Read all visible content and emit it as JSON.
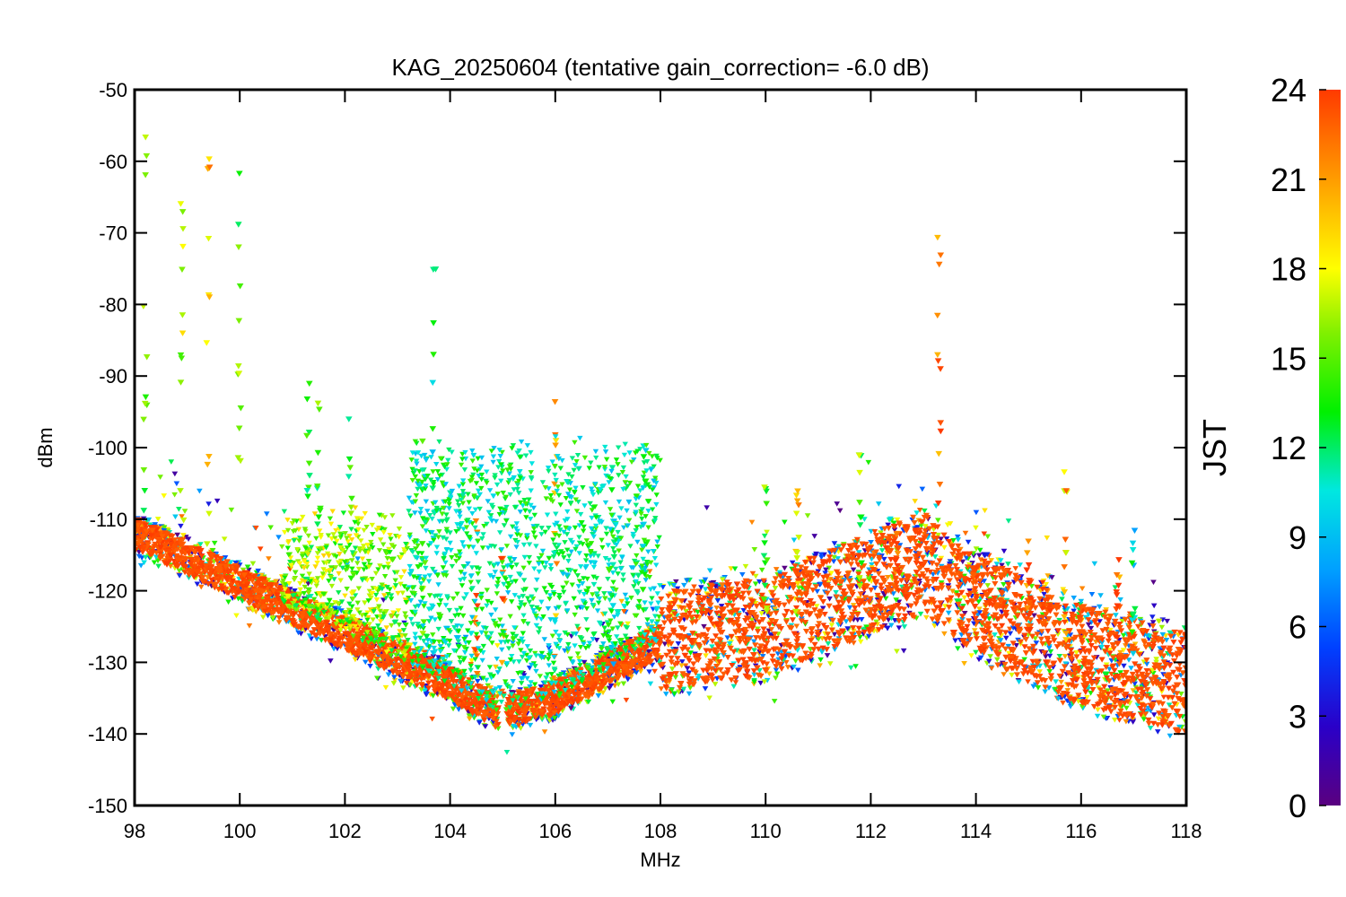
{
  "chart_data": {
    "type": "scatter",
    "title": "KAG_20250604 (tentative gain_correction= -6.0 dB)",
    "xlabel": "MHz",
    "ylabel": "dBm",
    "xlim": [
      98,
      118
    ],
    "ylim": [
      -150,
      -50
    ],
    "x_ticks": [
      98,
      100,
      102,
      104,
      106,
      108,
      110,
      112,
      114,
      116,
      118
    ],
    "y_ticks": [
      -50,
      -60,
      -70,
      -80,
      -90,
      -100,
      -110,
      -120,
      -130,
      -140,
      -150
    ],
    "grid": false,
    "marker": "downward triangle",
    "colorbar": {
      "label": "JST",
      "range": [
        0,
        24
      ],
      "ticks": [
        0,
        3,
        6,
        9,
        12,
        15,
        18,
        21,
        24
      ],
      "colormap": [
        "#5a0080",
        "#2a00c8",
        "#0040ff",
        "#00a0ff",
        "#00e8e0",
        "#00f000",
        "#80f000",
        "#ffff00",
        "#ffa000",
        "#ff3a00"
      ]
    },
    "noise_floor": {
      "x": [
        98,
        100,
        102,
        104,
        104.9,
        105.1,
        106,
        107,
        108,
        110,
        112,
        113,
        114,
        116,
        118
      ],
      "y": [
        -112,
        -119,
        -126,
        -133,
        -137,
        -137,
        -135,
        -131,
        -127,
        -125,
        -119,
        -116,
        -122,
        -129,
        -133
      ]
    },
    "signals": [
      {
        "freq": 98.2,
        "peak_dbm": -50,
        "jst": 15
      },
      {
        "freq": 98.9,
        "peak_dbm": -64,
        "jst": 17
      },
      {
        "freq": 99.4,
        "peak_dbm": -58,
        "jst": 20
      },
      {
        "freq": 100.0,
        "peak_dbm": -60,
        "jst": 15
      },
      {
        "freq": 101.3,
        "peak_dbm": -85,
        "jst": 13
      },
      {
        "freq": 101.5,
        "peak_dbm": -88,
        "jst": 14
      },
      {
        "freq": 102.1,
        "peak_dbm": -92,
        "jst": 14
      },
      {
        "freq": 103.5,
        "peak_dbm": -97,
        "jst": 15
      },
      {
        "freq": 103.7,
        "peak_dbm": -75,
        "jst": 11
      },
      {
        "freq": 104.5,
        "peak_dbm": -108,
        "jst": 23
      },
      {
        "freq": 105.0,
        "peak_dbm": -115,
        "jst": 23
      },
      {
        "freq": 106.0,
        "peak_dbm": -85,
        "jst": 20
      },
      {
        "freq": 107.1,
        "peak_dbm": -96,
        "jst": 11
      },
      {
        "freq": 107.7,
        "peak_dbm": -96,
        "jst": 11
      },
      {
        "freq": 110.0,
        "peak_dbm": -105,
        "jst": 15
      },
      {
        "freq": 110.6,
        "peak_dbm": -106,
        "jst": 20
      },
      {
        "freq": 111.8,
        "peak_dbm": -101,
        "jst": 15
      },
      {
        "freq": 112.5,
        "peak_dbm": -111,
        "jst": 23
      },
      {
        "freq": 113.3,
        "peak_dbm": -70,
        "jst": 23
      },
      {
        "freq": 115.0,
        "peak_dbm": -113,
        "jst": 23
      },
      {
        "freq": 115.7,
        "peak_dbm": -103,
        "jst": 20
      },
      {
        "freq": 116.7,
        "peak_dbm": -114,
        "jst": 23
      },
      {
        "freq": 117.0,
        "peak_dbm": -110,
        "jst": 11
      }
    ]
  }
}
